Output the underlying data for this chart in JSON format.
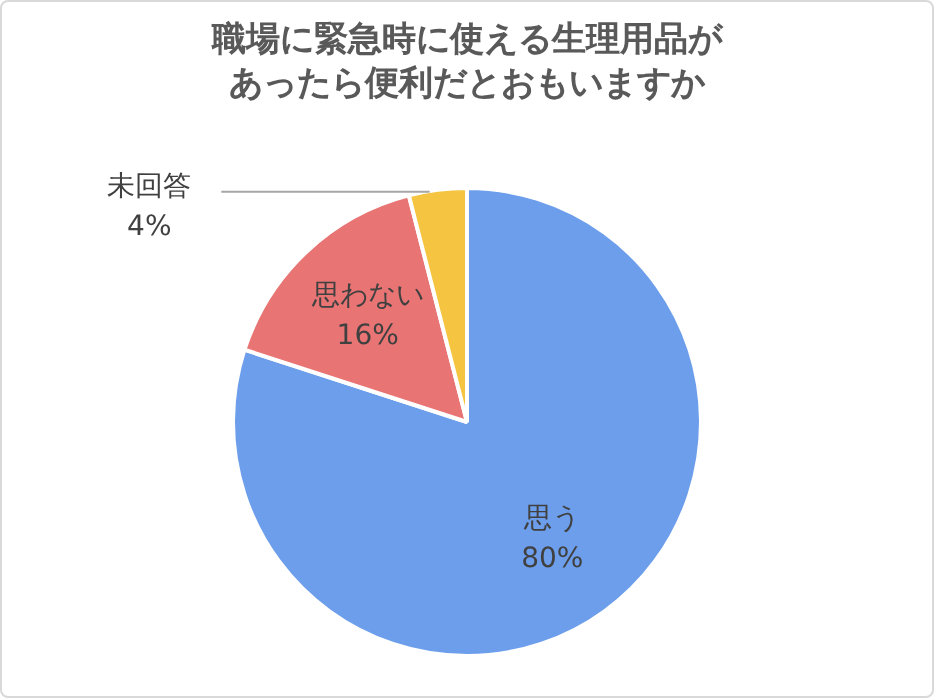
{
  "chart_data": {
    "type": "pie",
    "title": "職場に緊急時に使える生理用品があったら便利だとおもいますか",
    "categories": [
      "思う",
      "思わない",
      "未回答"
    ],
    "values": [
      80,
      16,
      4
    ],
    "value_labels": [
      "80%",
      "16%",
      "4%"
    ],
    "colors": [
      "#6d9eeb",
      "#e87474",
      "#f5c542"
    ],
    "legend": false
  }
}
